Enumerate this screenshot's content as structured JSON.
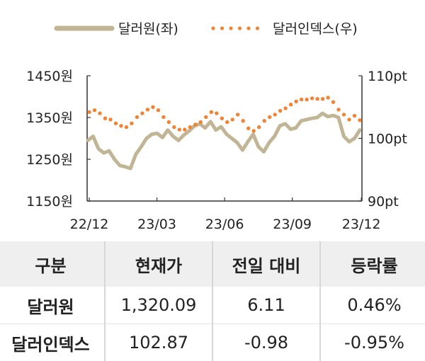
{
  "chart_data": {
    "type": "line",
    "legend_position": "top",
    "x_tick_labels": [
      "22/12",
      "23/03",
      "23/06",
      "23/09",
      "23/12"
    ],
    "y_left": {
      "ticks": [
        1150,
        1250,
        1350,
        1450
      ],
      "tick_labels": [
        "1150원",
        "1250원",
        "1350원",
        "1450원"
      ],
      "ylim": [
        1150,
        1450
      ]
    },
    "y_right": {
      "ticks": [
        90,
        100,
        110
      ],
      "tick_labels": [
        "90pt",
        "100pt",
        "110pt"
      ],
      "ylim": [
        90,
        110
      ]
    },
    "series": [
      {
        "name": "달러원(좌)",
        "axis": "left",
        "style": "solid",
        "color": "#c1b596",
        "x": [
          "22/12",
          "22/12",
          "22/12",
          "22/12",
          "22/12",
          "23/01",
          "23/01",
          "23/01",
          "23/01",
          "23/02",
          "23/02",
          "23/02",
          "23/02",
          "23/03",
          "23/03",
          "23/03",
          "23/03",
          "23/04",
          "23/04",
          "23/04",
          "23/04",
          "23/05",
          "23/05",
          "23/05",
          "23/05",
          "23/06",
          "23/06",
          "23/06",
          "23/06",
          "23/07",
          "23/07",
          "23/07",
          "23/07",
          "23/08",
          "23/08",
          "23/08",
          "23/08",
          "23/09",
          "23/09",
          "23/09",
          "23/09",
          "23/10",
          "23/10",
          "23/10",
          "23/10",
          "23/11",
          "23/11",
          "23/11",
          "23/11",
          "23/12",
          "23/12",
          "23/12"
        ],
        "values": [
          1295,
          1305,
          1275,
          1265,
          1270,
          1250,
          1235,
          1232,
          1228,
          1262,
          1280,
          1300,
          1310,
          1312,
          1302,
          1320,
          1305,
          1295,
          1308,
          1318,
          1330,
          1335,
          1325,
          1340,
          1320,
          1328,
          1310,
          1300,
          1290,
          1272,
          1292,
          1310,
          1280,
          1268,
          1290,
          1305,
          1330,
          1335,
          1322,
          1325,
          1342,
          1345,
          1348,
          1350,
          1360,
          1352,
          1355,
          1350,
          1305,
          1292,
          1300,
          1320
        ]
      },
      {
        "name": "달러인덱스(우)",
        "axis": "right",
        "style": "dotted",
        "color": "#ef8435",
        "x": [
          "22/12",
          "22/12",
          "22/12",
          "22/12",
          "22/12",
          "23/01",
          "23/01",
          "23/01",
          "23/01",
          "23/02",
          "23/02",
          "23/02",
          "23/02",
          "23/03",
          "23/03",
          "23/03",
          "23/03",
          "23/04",
          "23/04",
          "23/04",
          "23/04",
          "23/05",
          "23/05",
          "23/05",
          "23/05",
          "23/06",
          "23/06",
          "23/06",
          "23/06",
          "23/07",
          "23/07",
          "23/07",
          "23/07",
          "23/08",
          "23/08",
          "23/08",
          "23/08",
          "23/09",
          "23/09",
          "23/09",
          "23/09",
          "23/10",
          "23/10",
          "23/10",
          "23/10",
          "23/11",
          "23/11",
          "23/11",
          "23/11",
          "23/12",
          "23/12",
          "23/12"
        ],
        "values": [
          104.2,
          104.5,
          104.0,
          103.2,
          103.0,
          102.4,
          102.0,
          101.8,
          102.4,
          103.4,
          104.0,
          104.6,
          105.0,
          104.5,
          103.4,
          102.6,
          101.8,
          101.4,
          101.4,
          101.8,
          102.2,
          102.6,
          103.4,
          104.2,
          104.0,
          103.2,
          102.6,
          103.0,
          103.8,
          102.8,
          101.6,
          101.2,
          101.8,
          102.8,
          103.4,
          103.8,
          104.4,
          104.8,
          105.4,
          105.9,
          106.2,
          106.2,
          106.4,
          106.3,
          106.3,
          106.5,
          105.8,
          104.6,
          103.8,
          103.0,
          103.6,
          102.9
        ]
      }
    ]
  },
  "table": {
    "headers": [
      "구분",
      "현재가",
      "전일 대비",
      "등락률"
    ],
    "rows": [
      [
        "달러원",
        "1,320.09",
        "6.11",
        "0.46%"
      ],
      [
        "달러인덱스",
        "102.87",
        "-0.98",
        "-0.95%"
      ]
    ]
  }
}
